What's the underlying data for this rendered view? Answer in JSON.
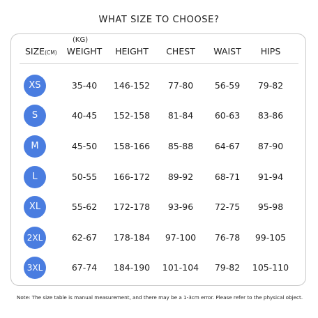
{
  "title": "WHAT SIZE TO CHOOSE?",
  "headers": {
    "size": "SIZE",
    "size_unit": "(CM)",
    "weight_unit": "(KG)",
    "weight": "WEIGHT",
    "height": "HEIGHT",
    "chest": "CHEST",
    "waist": "WAIST",
    "hips": "HIPS"
  },
  "colors": {
    "badge": "#4a7de0",
    "border": "#c9c9c9"
  },
  "rows": [
    {
      "size": "XS",
      "weight": "35-40",
      "height": "146-152",
      "chest": "77-80",
      "waist": "56-59",
      "hips": "79-82"
    },
    {
      "size": "S",
      "weight": "40-45",
      "height": "152-158",
      "chest": "81-84",
      "waist": "60-63",
      "hips": "83-86"
    },
    {
      "size": "M",
      "weight": "45-50",
      "height": "158-166",
      "chest": "85-88",
      "waist": "64-67",
      "hips": "87-90"
    },
    {
      "size": "L",
      "weight": "50-55",
      "height": "166-172",
      "chest": "89-92",
      "waist": "68-71",
      "hips": "91-94"
    },
    {
      "size": "XL",
      "weight": "55-62",
      "height": "172-178",
      "chest": "93-96",
      "waist": "72-75",
      "hips": "95-98"
    },
    {
      "size": "2XL",
      "weight": "62-67",
      "height": "178-184",
      "chest": "97-100",
      "waist": "76-78",
      "hips": "99-105"
    },
    {
      "size": "3XL",
      "weight": "67-74",
      "height": "184-190",
      "chest": "101-104",
      "waist": "79-82",
      "hips": "105-110"
    }
  ],
  "note": "Note: The size table is manual measurement, and there may be a 1-3cm error. Please refer to the physical object."
}
